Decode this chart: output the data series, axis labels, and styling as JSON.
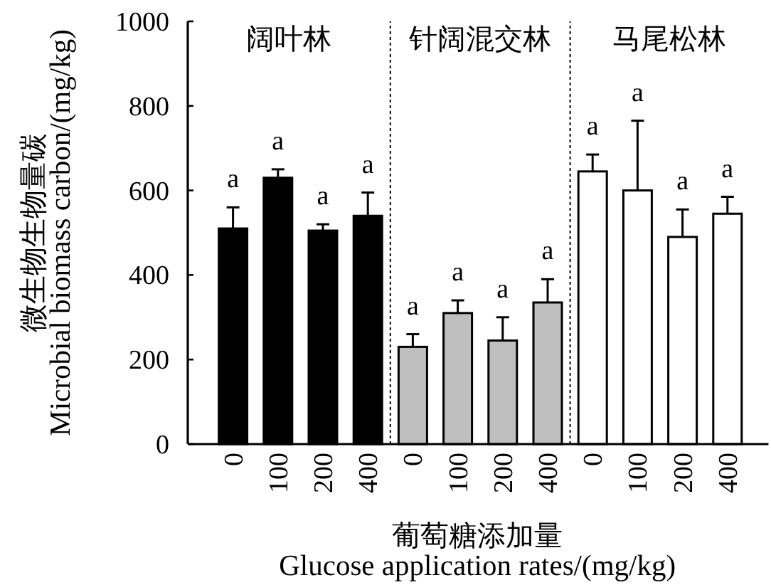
{
  "chart_data": [
    {
      "type": "bar",
      "title": "阔叶林",
      "ylabel": "微生物生物量碳\nMicrobial biomass carbon/(mg/kg)",
      "categories": [
        "0",
        "100",
        "200",
        "400"
      ],
      "values": [
        510,
        630,
        505,
        540
      ],
      "errors": [
        [
          510,
          560
        ],
        [
          630,
          650
        ],
        [
          505,
          520
        ],
        [
          540,
          595
        ]
      ],
      "value_labels": [
        "a",
        "a",
        "a",
        "a"
      ],
      "color": "#000000",
      "ylim": [
        0,
        1000
      ],
      "yticks": [
        0,
        200,
        400,
        600,
        800,
        1000
      ]
    },
    {
      "type": "bar",
      "title": "针阔混交林",
      "xlabel": "葡萄糖添加量\nGlucose application rates/(mg/kg)",
      "categories": [
        "0",
        "100",
        "200",
        "400"
      ],
      "values": [
        230,
        310,
        245,
        335
      ],
      "errors": [
        [
          230,
          260
        ],
        [
          310,
          340
        ],
        [
          245,
          300
        ],
        [
          335,
          390
        ]
      ],
      "value_labels": [
        "a",
        "a",
        "a",
        "a"
      ],
      "color": "#bfbfbf",
      "ylim": [
        0,
        1000
      ],
      "tick_labels": "x"
    },
    {
      "type": "bar",
      "title": "马尾松林",
      "categories": [
        "0",
        "100",
        "200",
        "400"
      ],
      "values": [
        645,
        600,
        490,
        545
      ],
      "errors": [
        [
          645,
          685
        ],
        [
          600,
          765
        ],
        [
          490,
          555
        ],
        [
          545,
          585
        ]
      ],
      "value_labels": [
        "a",
        "a",
        "a",
        "a"
      ],
      "color": "#ffffff",
      "ylim": [
        0,
        1000
      ],
      "tick_labels": "x"
    }
  ]
}
